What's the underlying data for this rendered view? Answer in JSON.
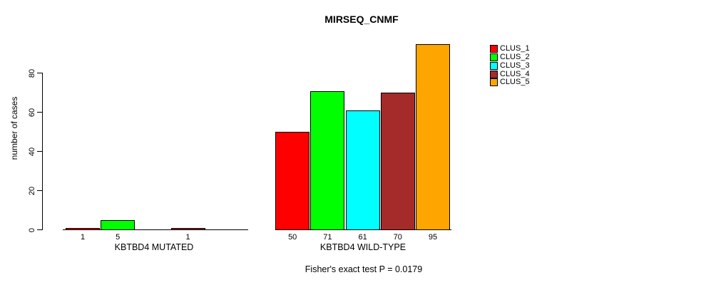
{
  "chart_data": {
    "type": "bar",
    "title": "MIRSEQ_CNMF",
    "ylabel": "number of cases",
    "xlabel": "",
    "ylim": [
      0,
      98
    ],
    "yticks": [
      0,
      20,
      40,
      60,
      80
    ],
    "grid": false,
    "legend_position": "right",
    "series_labels": [
      "CLUS_1",
      "CLUS_2",
      "CLUS_3",
      "CLUS_4",
      "CLUS_5"
    ],
    "colors": [
      "#FF0000",
      "#00FF00",
      "#00FFFF",
      "#A52A2A",
      "#FFA500"
    ],
    "groups": [
      {
        "label": "KBTBD4 MUTATED",
        "values": [
          1,
          5,
          0,
          1,
          0
        ],
        "value_labels": [
          "1",
          "5",
          "",
          "1",
          ""
        ]
      },
      {
        "label": "KBTBD4 WILD-TYPE",
        "values": [
          50,
          71,
          61,
          70,
          95
        ],
        "value_labels": [
          "50",
          "71",
          "61",
          "70",
          "95"
        ]
      }
    ],
    "annotation": "Fisher's exact test P = 0.0179"
  }
}
